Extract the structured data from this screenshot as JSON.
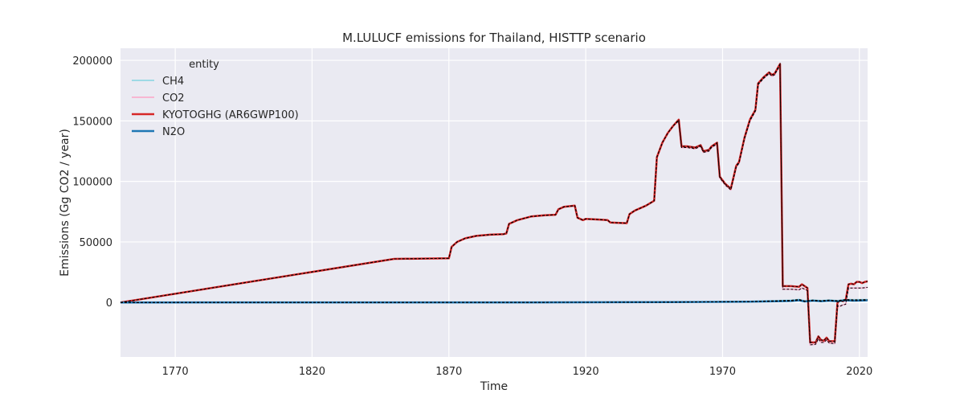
{
  "chart_data": {
    "type": "line",
    "title": "M.LULUCF emissions for Thailand, HISTTP scenario",
    "xlabel": "Time",
    "ylabel": "Emissions (Gg CO2 / year)",
    "xlim": [
      1750,
      2023
    ],
    "ylim": [
      -45000,
      210000
    ],
    "xticks": [
      1770,
      1820,
      1870,
      1920,
      1970,
      2020
    ],
    "yticks": [
      0,
      50000,
      100000,
      150000,
      200000
    ],
    "grid": true,
    "legend": {
      "title": "entity",
      "position": "top-left"
    },
    "series": [
      {
        "name": "CH4",
        "color": "#9edae5",
        "width": 2,
        "points": [
          [
            1750,
            0
          ],
          [
            1850,
            0
          ],
          [
            1900,
            100
          ],
          [
            1950,
            300
          ],
          [
            1980,
            800
          ],
          [
            1990,
            1500
          ],
          [
            1995,
            1800
          ],
          [
            1998,
            2500
          ],
          [
            2000,
            1200
          ],
          [
            2003,
            2000
          ],
          [
            2006,
            1500
          ],
          [
            2009,
            2000
          ],
          [
            2012,
            1500
          ],
          [
            2015,
            2500
          ],
          [
            2018,
            2200
          ],
          [
            2021,
            2300
          ],
          [
            2023,
            2400
          ]
        ]
      },
      {
        "name": "CO2",
        "color": "#f7b6d2",
        "width": 2,
        "points": [
          [
            1750,
            0
          ],
          [
            1850,
            36000
          ],
          [
            1870,
            36500
          ],
          [
            1871,
            46000
          ],
          [
            1873,
            50000
          ],
          [
            1876,
            53000
          ],
          [
            1880,
            55000
          ],
          [
            1885,
            56000
          ],
          [
            1890,
            56500
          ],
          [
            1891,
            57000
          ],
          [
            1892,
            65000
          ],
          [
            1895,
            68000
          ],
          [
            1900,
            71000
          ],
          [
            1905,
            72000
          ],
          [
            1909,
            72500
          ],
          [
            1910,
            77000
          ],
          [
            1912,
            79000
          ],
          [
            1916,
            80000
          ],
          [
            1917,
            70000
          ],
          [
            1919,
            68000
          ],
          [
            1920,
            69000
          ],
          [
            1925,
            68500
          ],
          [
            1928,
            68000
          ],
          [
            1929,
            66000
          ],
          [
            1935,
            65500
          ],
          [
            1936,
            73000
          ],
          [
            1938,
            76000
          ],
          [
            1942,
            80000
          ],
          [
            1945,
            84000
          ],
          [
            1946,
            120000
          ],
          [
            1948,
            132000
          ],
          [
            1950,
            140000
          ],
          [
            1952,
            146000
          ],
          [
            1954,
            150000
          ],
          [
            1955,
            128000
          ],
          [
            1957,
            128000
          ],
          [
            1960,
            127000
          ],
          [
            1962,
            129000
          ],
          [
            1963,
            124000
          ],
          [
            1965,
            125000
          ],
          [
            1966,
            128000
          ],
          [
            1968,
            131000
          ],
          [
            1969,
            103000
          ],
          [
            1971,
            97000
          ],
          [
            1973,
            93000
          ],
          [
            1975,
            112000
          ],
          [
            1976,
            115000
          ],
          [
            1978,
            135000
          ],
          [
            1980,
            150000
          ],
          [
            1982,
            158000
          ],
          [
            1983,
            180000
          ],
          [
            1985,
            185000
          ],
          [
            1987,
            189000
          ],
          [
            1988,
            187000
          ],
          [
            1989,
            188000
          ],
          [
            1991,
            196000
          ],
          [
            1992,
            11000
          ],
          [
            1995,
            11000
          ],
          [
            1998,
            10500
          ],
          [
            1999,
            12000
          ],
          [
            2001,
            10000
          ],
          [
            2002,
            -35000
          ],
          [
            2004,
            -34500
          ],
          [
            2005,
            -30000
          ],
          [
            2006,
            -33000
          ],
          [
            2007,
            -33000
          ],
          [
            2008,
            -31000
          ],
          [
            2009,
            -33500
          ],
          [
            2011,
            -34000
          ],
          [
            2012,
            -3000
          ],
          [
            2013,
            -3000
          ],
          [
            2014,
            -2000
          ],
          [
            2015,
            -1500
          ],
          [
            2016,
            12000
          ],
          [
            2017,
            12000
          ],
          [
            2018,
            12000
          ],
          [
            2019,
            12000
          ],
          [
            2020,
            12000
          ],
          [
            2021,
            12000
          ],
          [
            2023,
            12500
          ]
        ]
      },
      {
        "name": "KYOTOGHG (AR6GWP100)",
        "color": "#d62728",
        "width": 2.5,
        "points": [
          [
            1750,
            0
          ],
          [
            1850,
            36000
          ],
          [
            1870,
            36500
          ],
          [
            1871,
            46000
          ],
          [
            1873,
            50000
          ],
          [
            1876,
            53000
          ],
          [
            1880,
            55000
          ],
          [
            1885,
            56000
          ],
          [
            1890,
            56500
          ],
          [
            1891,
            57000
          ],
          [
            1892,
            65000
          ],
          [
            1895,
            68000
          ],
          [
            1900,
            71000
          ],
          [
            1905,
            72000
          ],
          [
            1909,
            72500
          ],
          [
            1910,
            77000
          ],
          [
            1912,
            79000
          ],
          [
            1916,
            80000
          ],
          [
            1917,
            70000
          ],
          [
            1919,
            68000
          ],
          [
            1920,
            69000
          ],
          [
            1925,
            68500
          ],
          [
            1928,
            68000
          ],
          [
            1929,
            66000
          ],
          [
            1935,
            65500
          ],
          [
            1936,
            73000
          ],
          [
            1938,
            76000
          ],
          [
            1942,
            80000
          ],
          [
            1945,
            84000
          ],
          [
            1946,
            120000
          ],
          [
            1948,
            132000
          ],
          [
            1950,
            140000
          ],
          [
            1952,
            146000
          ],
          [
            1954,
            151000
          ],
          [
            1955,
            129000
          ],
          [
            1957,
            129000
          ],
          [
            1960,
            128000
          ],
          [
            1962,
            130000
          ],
          [
            1963,
            125000
          ],
          [
            1965,
            126000
          ],
          [
            1966,
            129000
          ],
          [
            1968,
            132000
          ],
          [
            1969,
            104000
          ],
          [
            1971,
            98000
          ],
          [
            1973,
            94000
          ],
          [
            1975,
            113000
          ],
          [
            1976,
            116000
          ],
          [
            1978,
            136000
          ],
          [
            1980,
            151000
          ],
          [
            1982,
            159000
          ],
          [
            1983,
            181000
          ],
          [
            1985,
            186000
          ],
          [
            1987,
            190000
          ],
          [
            1988,
            188000
          ],
          [
            1989,
            189000
          ],
          [
            1991,
            197000
          ],
          [
            1992,
            13500
          ],
          [
            1995,
            13500
          ],
          [
            1998,
            13000
          ],
          [
            1999,
            15000
          ],
          [
            2001,
            12000
          ],
          [
            2002,
            -33000
          ],
          [
            2004,
            -33000
          ],
          [
            2005,
            -28000
          ],
          [
            2006,
            -31000
          ],
          [
            2007,
            -31500
          ],
          [
            2008,
            -29000
          ],
          [
            2009,
            -32000
          ],
          [
            2011,
            -32000
          ],
          [
            2012,
            0
          ],
          [
            2013,
            1500
          ],
          [
            2014,
            1000
          ],
          [
            2015,
            2000
          ],
          [
            2016,
            15000
          ],
          [
            2017,
            15500
          ],
          [
            2018,
            15000
          ],
          [
            2019,
            17000
          ],
          [
            2020,
            17000
          ],
          [
            2021,
            16000
          ],
          [
            2022,
            17000
          ],
          [
            2023,
            17500
          ]
        ]
      },
      {
        "name": "N2O",
        "color": "#1f77b4",
        "width": 2.5,
        "points": [
          [
            1750,
            0
          ],
          [
            1900,
            100
          ],
          [
            1950,
            300
          ],
          [
            1980,
            700
          ],
          [
            1990,
            1000
          ],
          [
            1995,
            1200
          ],
          [
            1998,
            1800
          ],
          [
            2000,
            800
          ],
          [
            2003,
            1500
          ],
          [
            2006,
            1000
          ],
          [
            2009,
            1500
          ],
          [
            2012,
            1000
          ],
          [
            2015,
            1800
          ],
          [
            2018,
            1500
          ],
          [
            2021,
            1700
          ],
          [
            2023,
            1800
          ]
        ]
      }
    ]
  }
}
